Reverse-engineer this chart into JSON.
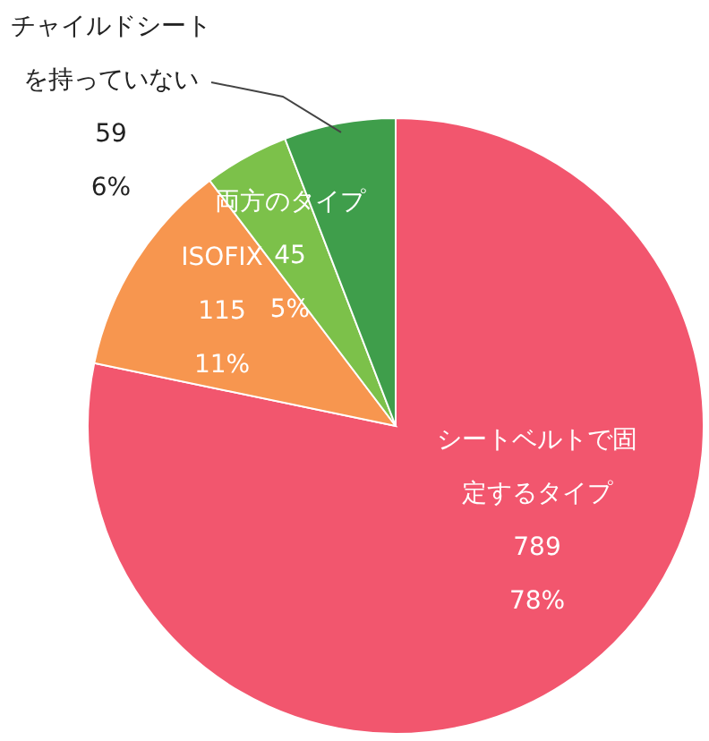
{
  "chart_data": {
    "type": "pie",
    "categories": [
      "シートベルトで固定するタイプ",
      "ISOFIX",
      "両方のタイプ",
      "チャイルドシートを持っていない"
    ],
    "values": [
      789,
      115,
      45,
      59
    ],
    "colors": [
      "#f2566e",
      "#f7964f",
      "#7cc14a",
      "#3f9e4b"
    ],
    "data_labels": true,
    "annotations": [
      "78%",
      "11%",
      "5%",
      "6%"
    ],
    "legend": false
  }
}
